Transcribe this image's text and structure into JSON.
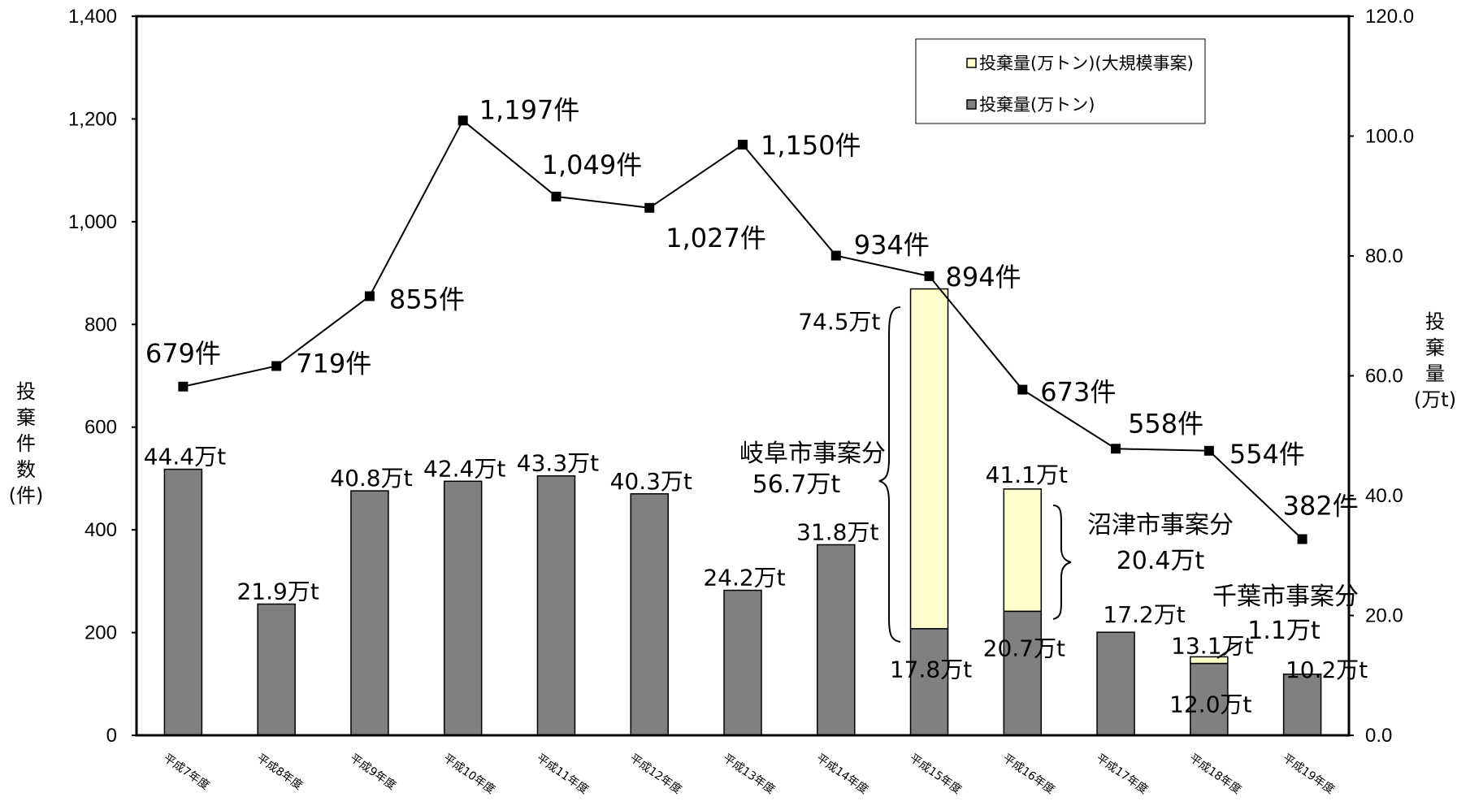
{
  "chart_data": {
    "type": "bar",
    "categories": [
      "平成7年度",
      "平成8年度",
      "平成9年度",
      "平成10年度",
      "平成11年度",
      "平成12年度",
      "平成13年度",
      "平成14年度",
      "平成15年度",
      "平成16年度",
      "平成17年度",
      "平成18年度",
      "平成19年度"
    ],
    "series": [
      {
        "name": "投棄量(万トン)",
        "axis": "right",
        "type": "bar",
        "color": "#808080",
        "values": [
          44.4,
          21.9,
          40.8,
          42.4,
          43.3,
          40.3,
          24.2,
          31.8,
          17.8,
          20.7,
          17.2,
          12.0,
          10.2
        ]
      },
      {
        "name": "投棄量(万トン)(大規模事案)",
        "axis": "right",
        "type": "bar",
        "stacked": true,
        "color": "#FFFFCC",
        "values": [
          0,
          0,
          0,
          0,
          0,
          0,
          0,
          0,
          56.7,
          20.4,
          0,
          1.1,
          0
        ]
      },
      {
        "axis": "left",
        "type": "line",
        "color": "#000000",
        "values": [
          679,
          719,
          855,
          1197,
          1049,
          1027,
          1150,
          934,
          894,
          673,
          558,
          554,
          382
        ]
      }
    ],
    "bar_labels": [
      "44.4万t",
      "21.9万t",
      "40.8万t",
      "42.4万t",
      "43.3万t",
      "40.3万t",
      "24.2万t",
      "31.8万t",
      "17.8万t",
      "20.7万t",
      "17.2万t",
      "12.0万t",
      "10.2万t"
    ],
    "bar_total_labels": {
      "8": "74.5万t",
      "9": "41.1万t",
      "11": "13.1万t"
    },
    "count_labels": [
      "679件",
      "719件",
      "855件",
      "1,197件",
      "1,049件",
      "1,027件",
      "1,150件",
      "934件",
      "894件",
      "673件",
      "558件",
      "554件",
      "382件"
    ],
    "annotations": [
      {
        "line1": "岐阜市事案分",
        "line2": "56.7万t"
      },
      {
        "line1": "沼津市事案分",
        "line2": "20.4万t"
      },
      {
        "line1": "千葉市事案分",
        "line2": "1.1万t"
      }
    ],
    "ylabel_left": "投棄件数(件)",
    "ylabel_left_chars": [
      "投",
      "棄",
      "件",
      "数",
      "(件)"
    ],
    "ylabel_right": "投棄量(万t)",
    "ylabel_right_chars": [
      "投",
      "棄",
      "量",
      "(万t)"
    ],
    "ylim_left": [
      0,
      1400
    ],
    "ylim_right": [
      0,
      120
    ],
    "yticks_left": [
      "0",
      "200",
      "400",
      "600",
      "800",
      "1,000",
      "1,200",
      "1,400"
    ],
    "yticks_right": [
      "0.0",
      "20.0",
      "40.0",
      "60.0",
      "80.0",
      "100.0",
      "120.0"
    ],
    "legend": {
      "position": "top-right",
      "entries": [
        "投棄量(万トン)(大規模事案)",
        "投棄量(万トン)"
      ]
    },
    "grid": false
  }
}
